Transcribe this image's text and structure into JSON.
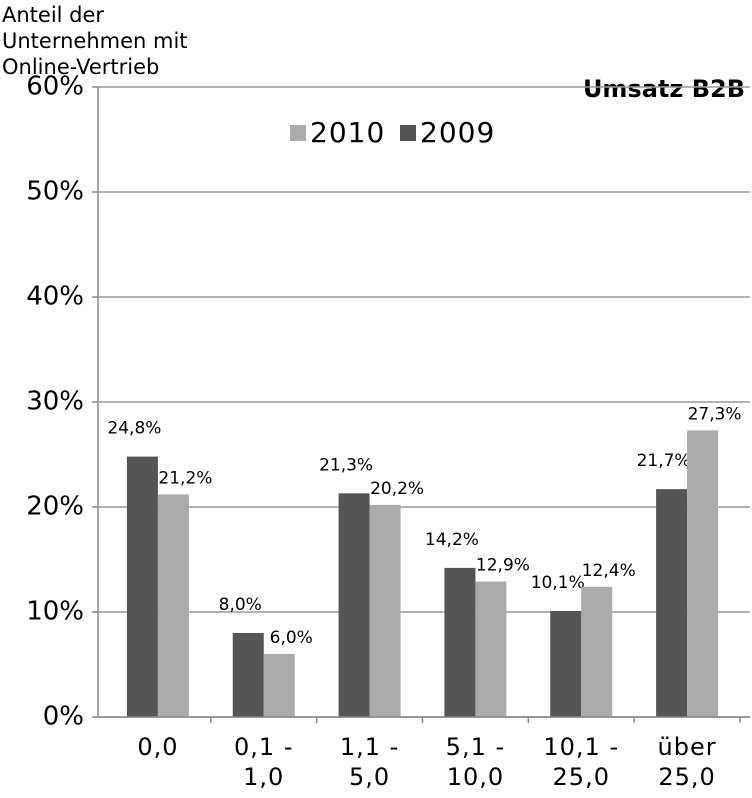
{
  "chart_data": {
    "type": "bar",
    "title": "Umsatz B2B",
    "ylabel": "Anteil der Unternehmen mit Online-Vertrieb",
    "categories": [
      "0,0",
      "0,1 - 1,0",
      "1,1 - 5,0",
      "5,1 - 10,0",
      "10,1 - 25,0",
      "über 25,0"
    ],
    "series": [
      {
        "name": "2009",
        "color": "#555555",
        "values": [
          24.8,
          8.0,
          21.3,
          14.2,
          10.1,
          21.7
        ],
        "value_labels": [
          "24,8%",
          "8,0%",
          "21,3%",
          "14,2%",
          "10,1%",
          "21,7%"
        ]
      },
      {
        "name": "2010",
        "color": "#ababab",
        "values": [
          21.2,
          6.0,
          20.2,
          12.9,
          12.4,
          27.3
        ],
        "value_labels": [
          "21,2%",
          "6,0%",
          "20,2%",
          "12,9%",
          "12,4%",
          "27,3%"
        ]
      }
    ],
    "ylim": [
      0,
      60
    ],
    "yticks": [
      {
        "value": 0,
        "label": "0%"
      },
      {
        "value": 10,
        "label": "10%"
      },
      {
        "value": 20,
        "label": "20%"
      },
      {
        "value": 30,
        "label": "30%"
      },
      {
        "value": 40,
        "label": "40%"
      },
      {
        "value": 50,
        "label": "50%"
      },
      {
        "value": 60,
        "label": "60%"
      }
    ],
    "grid": true
  }
}
